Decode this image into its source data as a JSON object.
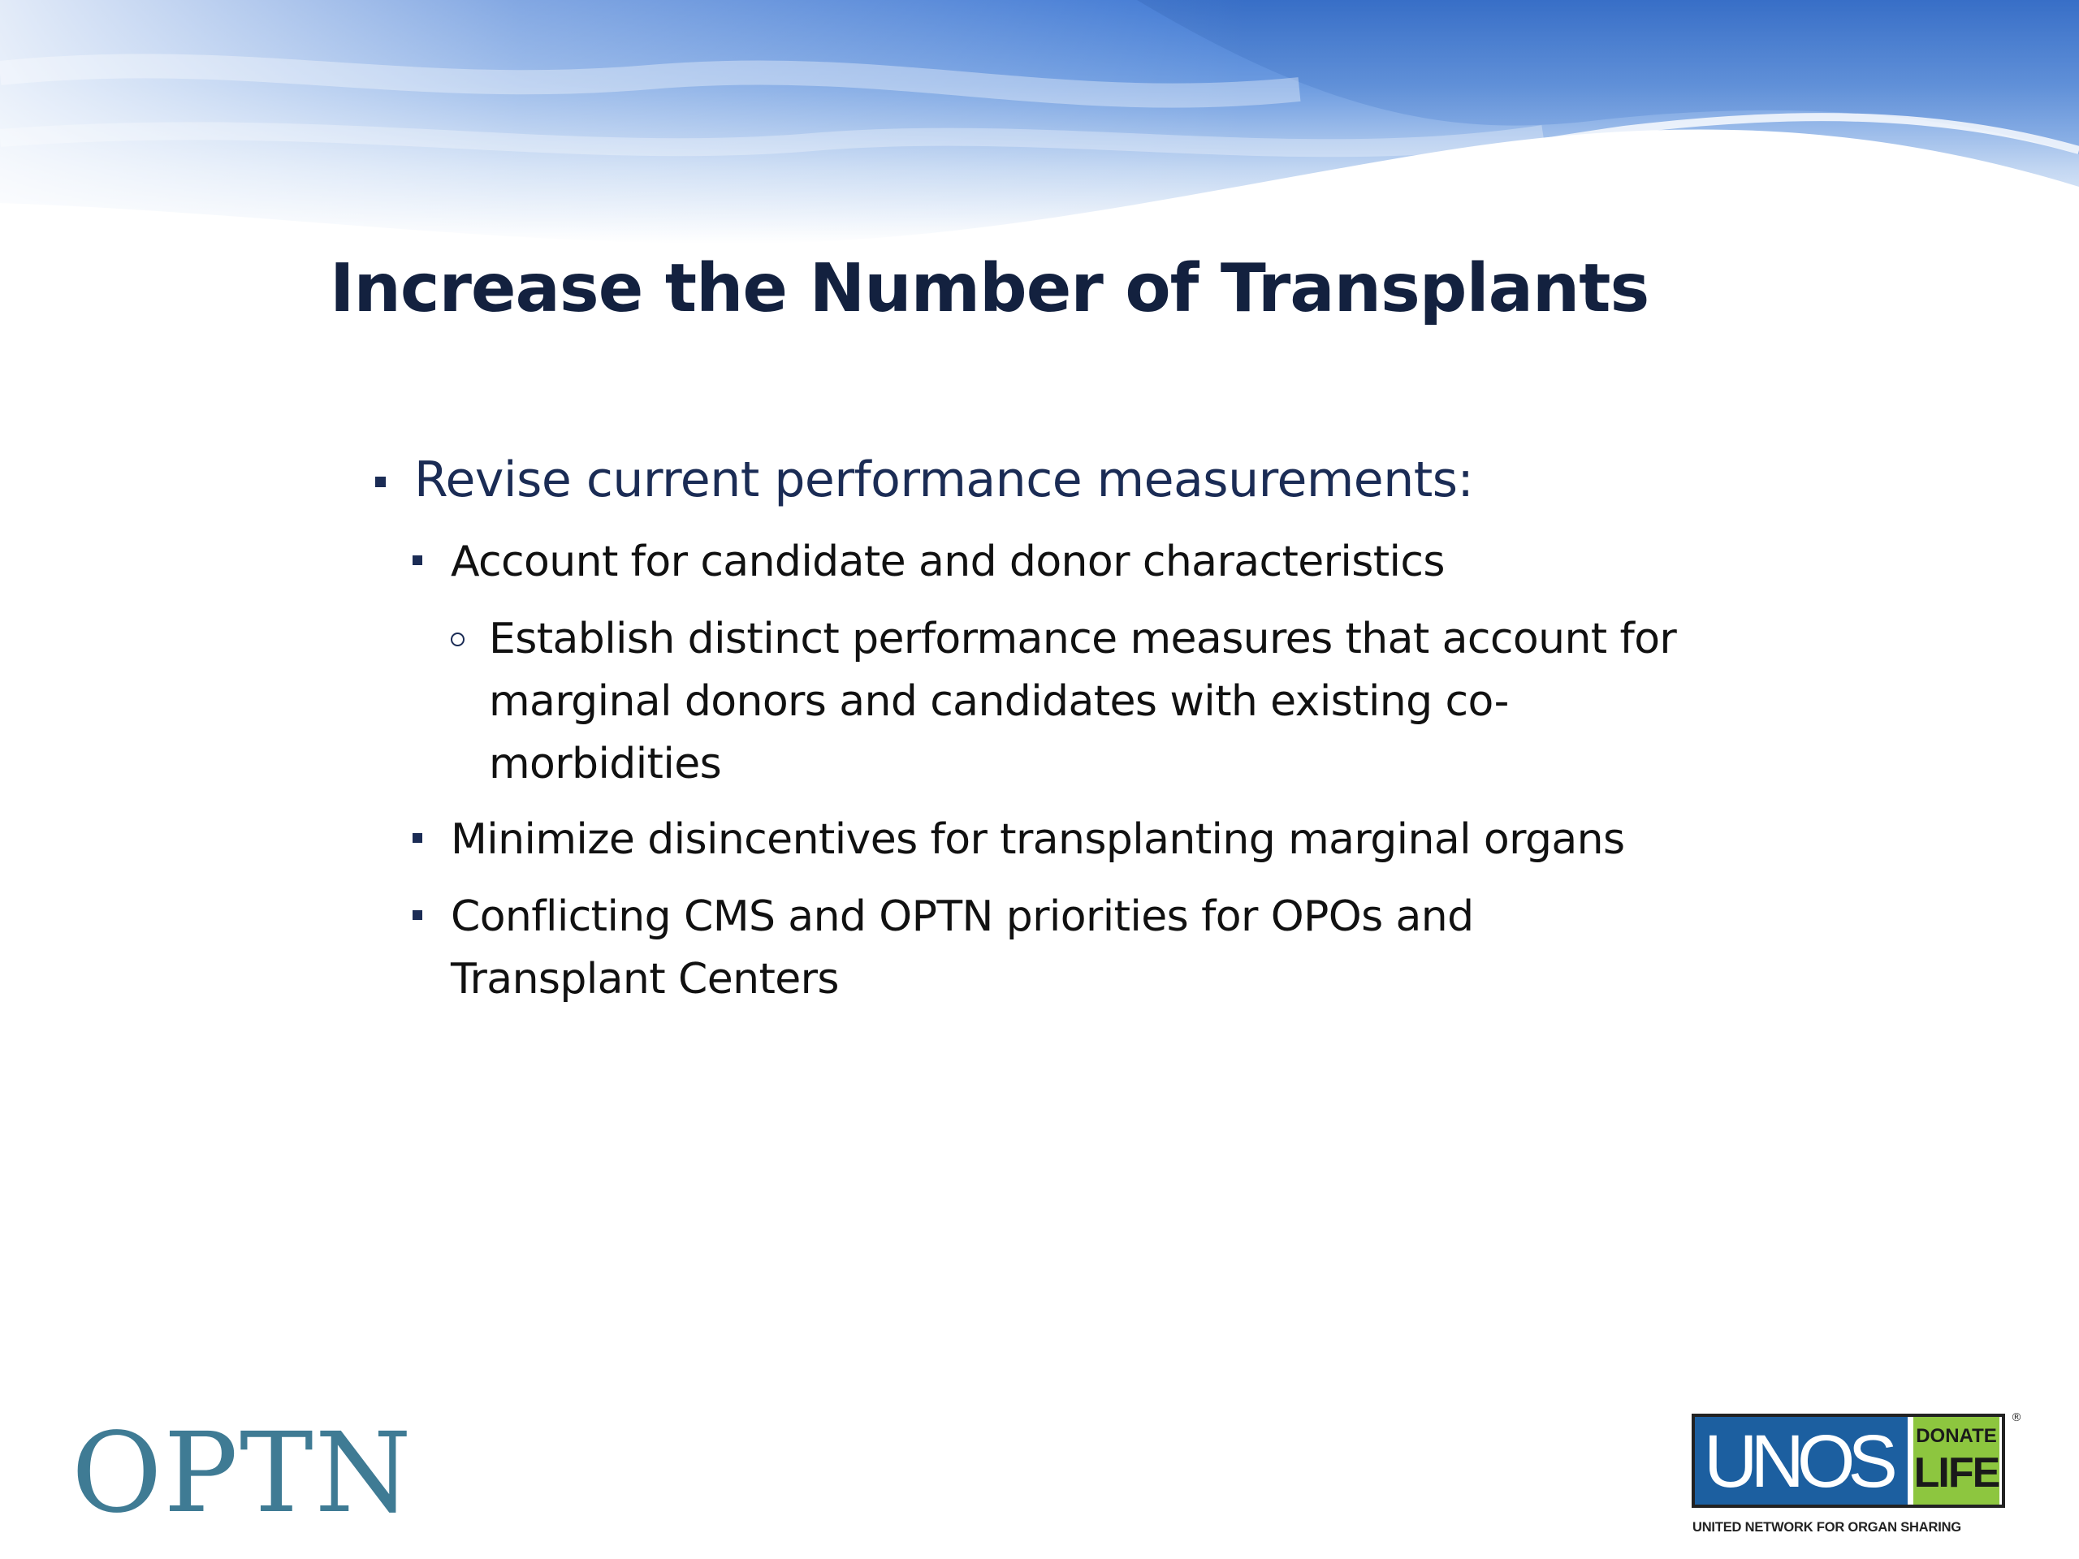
{
  "slide": {
    "title": "Increase the Number of Transplants",
    "bullets": [
      {
        "level": 1,
        "marker": "square",
        "text": "Revise current performance measurements:"
      },
      {
        "level": 2,
        "marker": "square",
        "text": "Account for candidate and donor characteristics"
      },
      {
        "level": 3,
        "marker": "circle",
        "text": "Establish distinct performance measures that account for marginal donors and candidates with existing co-morbidities"
      },
      {
        "level": 2,
        "marker": "square",
        "text": "Minimize disincentives for transplanting marginal organs"
      },
      {
        "level": 2,
        "marker": "square",
        "text": "Conflicting CMS and OPTN priorities for OPOs and Transplant Centers"
      }
    ]
  },
  "footer": {
    "optn_logo_text": "OPTN",
    "unos_logo": {
      "unos": "UNOS",
      "donate": "DONATE",
      "life": "LIFE",
      "registered": "®",
      "tagline": "UNITED NETWORK FOR ORGAN SHARING"
    }
  },
  "colors": {
    "title": "#13213f",
    "level1_text": "#1b2c55",
    "body_text": "#111111",
    "optn_teal": "#3f7b94",
    "unos_blue": "#1c5fa0",
    "donate_life_green": "#8dc63f",
    "banner_blue": "#4a86d8"
  }
}
